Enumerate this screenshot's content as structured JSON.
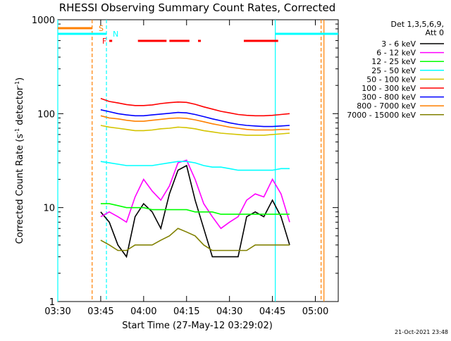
{
  "chart_data": {
    "type": "line",
    "title": "RHESSI Observing Summary Count Rates, Corrected",
    "xlabel": "Start Time (27-May-12 03:29:02)",
    "ylabel": [
      "Corrected Count Rate (s",
      "-1",
      " detector",
      "-1",
      ")"
    ],
    "legend_header": [
      "Det 1,3,5,6,9,",
      "Att 0"
    ],
    "footer": "21-Oct-2021 23:48",
    "log_y": true,
    "xlim": [
      "03:30",
      "05:08"
    ],
    "xticks": [
      "03:30",
      "03:45",
      "04:00",
      "04:15",
      "04:30",
      "04:45",
      "05:00"
    ],
    "ylim": [
      1,
      1000
    ],
    "yticks": [
      1,
      10,
      100,
      1000
    ],
    "x": [
      "03:45",
      "03:48",
      "03:51",
      "03:54",
      "03:57",
      "04:00",
      "04:03",
      "04:06",
      "04:09",
      "04:12",
      "04:15",
      "04:18",
      "04:21",
      "04:24",
      "04:27",
      "04:30",
      "04:33",
      "04:36",
      "04:39",
      "04:42",
      "04:45",
      "04:48",
      "04:51"
    ],
    "series": [
      {
        "name": "3 - 6 keV",
        "color": "#000000",
        "values": [
          9,
          7,
          4,
          3,
          8,
          11,
          9,
          6,
          14,
          25,
          28,
          12,
          6,
          3,
          3,
          3,
          3,
          8,
          9,
          8,
          12,
          8,
          4
        ]
      },
      {
        "name": "6 - 12 keV",
        "color": "#ff00ff",
        "values": [
          8,
          9,
          8,
          7,
          13,
          20,
          15,
          12,
          17,
          30,
          32,
          20,
          11,
          8,
          6,
          7,
          8,
          12,
          14,
          13,
          20,
          14,
          7
        ]
      },
      {
        "name": "12 - 25 keV",
        "color": "#00ff00",
        "values": [
          11,
          11,
          10.5,
          10,
          10,
          10,
          9.5,
          9.5,
          9.5,
          9.5,
          9.5,
          9,
          9,
          9,
          8.5,
          8.5,
          8.5,
          8.5,
          8.5,
          8.5,
          8.5,
          8.5,
          8.5
        ]
      },
      {
        "name": "25 - 50 keV",
        "color": "#00ffff",
        "values": [
          31,
          30,
          29,
          28,
          28,
          28,
          28,
          29,
          30,
          31,
          31,
          30,
          28,
          27,
          27,
          26,
          25,
          25,
          25,
          25,
          25,
          26,
          26
        ]
      },
      {
        "name": "50 - 100 keV",
        "color": "#d4c400",
        "values": [
          75,
          72,
          70,
          68,
          66,
          66,
          67,
          69,
          70,
          72,
          71,
          69,
          66,
          64,
          62,
          61,
          60,
          59,
          59,
          59,
          60,
          61,
          62
        ]
      },
      {
        "name": "100 - 300 keV",
        "color": "#ff0000",
        "values": [
          145,
          135,
          130,
          125,
          122,
          122,
          124,
          128,
          131,
          133,
          132,
          126,
          118,
          112,
          106,
          102,
          98,
          96,
          95,
          95,
          96,
          98,
          100
        ]
      },
      {
        "name": "300 - 800 keV",
        "color": "#0000ff",
        "values": [
          110,
          105,
          100,
          97,
          95,
          95,
          97,
          99,
          101,
          103,
          102,
          98,
          93,
          88,
          84,
          80,
          77,
          75,
          74,
          73,
          73,
          74,
          75
        ]
      },
      {
        "name": "800 - 7000 keV",
        "color": "#ff8000",
        "values": [
          95,
          90,
          88,
          85,
          83,
          83,
          85,
          87,
          89,
          90,
          89,
          86,
          82,
          78,
          75,
          72,
          70,
          68,
          67,
          67,
          67,
          68,
          68
        ]
      },
      {
        "name": "7000 - 15000 keV",
        "color": "#808000",
        "values": [
          4.5,
          4,
          3.5,
          3.5,
          4,
          4,
          4,
          4.5,
          5,
          6,
          5.5,
          5,
          4,
          3.5,
          3.5,
          3.5,
          3.5,
          3.5,
          4,
          4,
          4,
          4,
          4
        ]
      }
    ],
    "markers": [
      {
        "x": "03:30",
        "color": "#00ffff",
        "dashed": false
      },
      {
        "x": "03:42",
        "color": "#ff8000",
        "dashed": true
      },
      {
        "x": "03:47",
        "color": "#00ffff",
        "dashed": true
      },
      {
        "x": "04:46",
        "color": "#00ffff",
        "dashed": false
      },
      {
        "x": "05:02",
        "color": "#ff8000",
        "dashed": true
      },
      {
        "x": "05:03",
        "color": "#ff8000",
        "dashed": false
      }
    ],
    "flags": [
      {
        "label": "S",
        "color": "#ff8000",
        "segments": [
          [
            "03:30",
            "03:42"
          ]
        ]
      },
      {
        "label": "N",
        "color": "#00ffff",
        "segments": [
          [
            "03:30",
            "03:47"
          ],
          [
            "04:46",
            "05:08"
          ]
        ]
      },
      {
        "label": "F",
        "color": "#ff0000",
        "segments": [
          [
            "03:48",
            "03:49"
          ],
          [
            "03:58",
            "04:08"
          ],
          [
            "04:09",
            "04:16"
          ],
          [
            "04:19",
            "04:20"
          ],
          [
            "04:35",
            "04:47"
          ]
        ]
      }
    ]
  }
}
